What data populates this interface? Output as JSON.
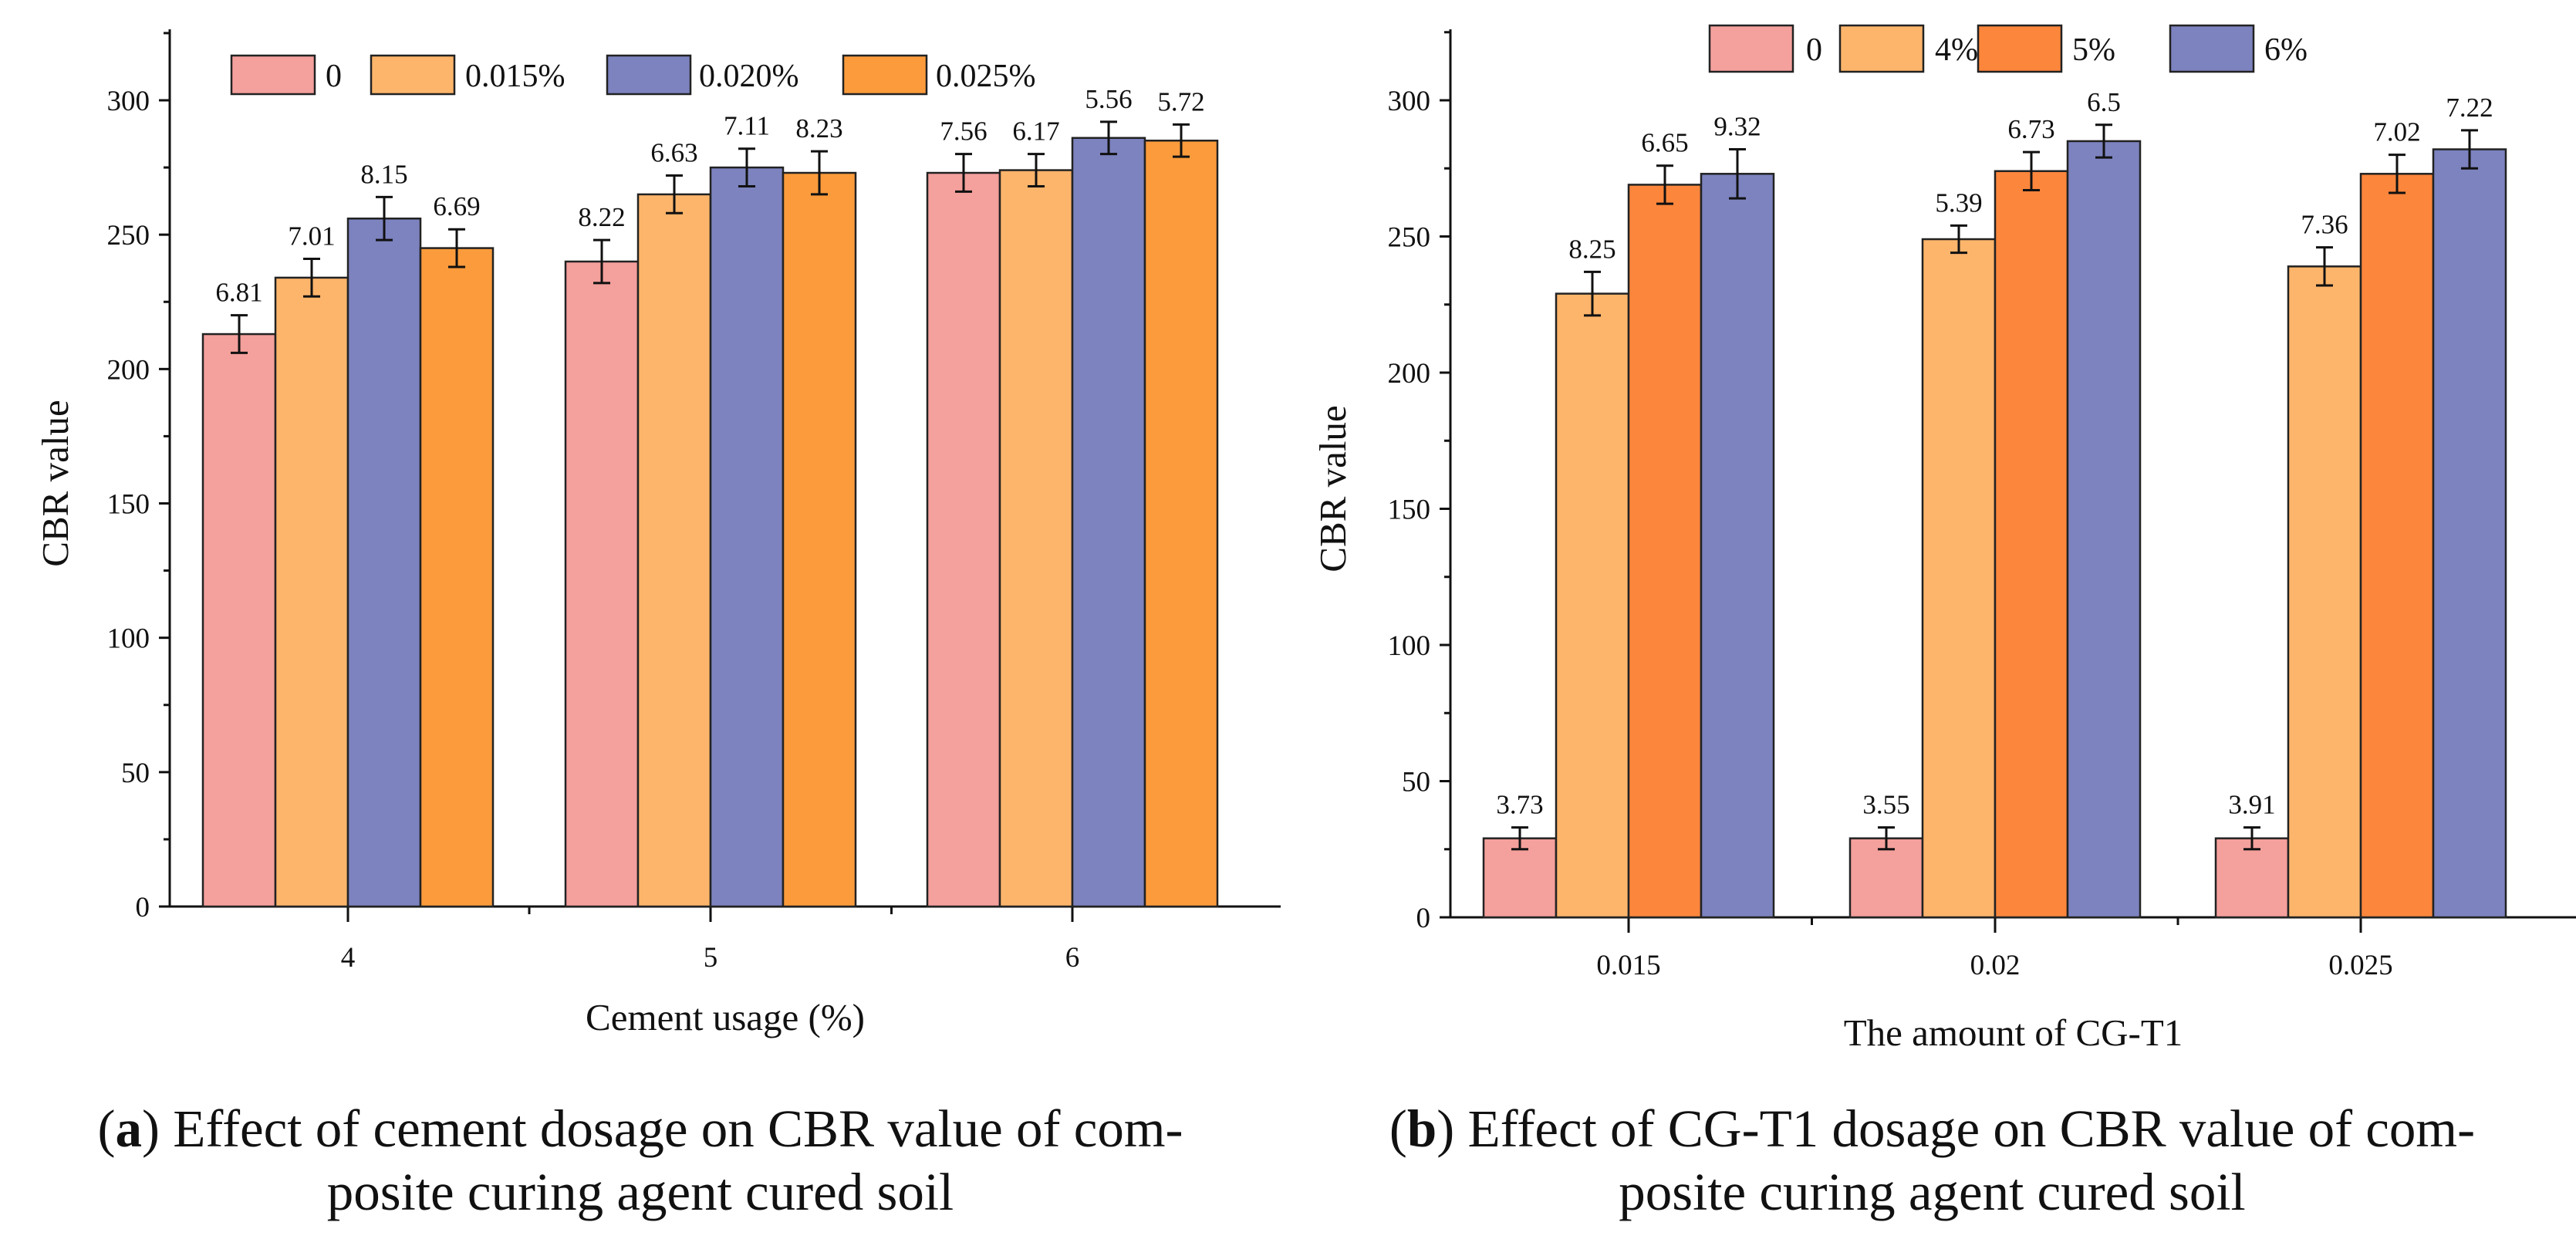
{
  "chart_data": [
    {
      "id": "a",
      "type": "bar",
      "title": "Effect of cement dosage on CBR value of composite curing agent cured soil",
      "caption_letter": "a",
      "caption_line1": "Effect of cement dosage on CBR value of com-",
      "caption_line2": "posite curing agent cured soil",
      "xlabel": "Cement usage (%)",
      "ylabel": "CBR value",
      "ylim": [
        0,
        325
      ],
      "yticks": [
        0,
        50,
        100,
        150,
        200,
        250,
        300
      ],
      "categories": [
        "4",
        "5",
        "6"
      ],
      "series": [
        {
          "name": "0",
          "color": "#F4A09C",
          "values": [
            213,
            240,
            273
          ],
          "errors": [
            7,
            8,
            7
          ],
          "labels": [
            "6.81",
            "8.22",
            "7.56"
          ]
        },
        {
          "name": "0.015%",
          "color": "#FDB56B",
          "values": [
            234,
            265,
            274
          ],
          "errors": [
            7,
            7,
            6
          ],
          "labels": [
            "7.01",
            "6.63",
            "6.17"
          ]
        },
        {
          "name": "0.020%",
          "color": "#7C83BF",
          "values": [
            256,
            275,
            286
          ],
          "errors": [
            8,
            7,
            6
          ],
          "labels": [
            "8.15",
            "7.11",
            "5.56"
          ]
        },
        {
          "name": "0.025%",
          "color": "#FB9B3C",
          "values": [
            245,
            273,
            285
          ],
          "errors": [
            7,
            8,
            6
          ],
          "labels": [
            "6.69",
            "8.23",
            "5.72"
          ]
        }
      ]
    },
    {
      "id": "b",
      "type": "bar",
      "title": "Effect of CG-T1 dosage on CBR value of composite curing agent cured soil",
      "caption_letter": "b",
      "caption_line1": "Effect of CG-T1 dosage on CBR value of com-",
      "caption_line2": "posite curing agent cured soil",
      "xlabel": "The amount of CG-T1",
      "ylabel": "CBR value",
      "ylim": [
        0,
        325
      ],
      "yticks": [
        0,
        50,
        100,
        150,
        200,
        250,
        300
      ],
      "categories": [
        "0.015",
        "0.02",
        "0.025"
      ],
      "series": [
        {
          "name": "0",
          "color": "#F4A09C",
          "values": [
            29,
            29,
            29
          ],
          "errors": [
            4,
            4,
            4
          ],
          "labels": [
            "3.73",
            "3.55",
            "3.91"
          ]
        },
        {
          "name": "4%",
          "color": "#FDB56B",
          "values": [
            229,
            249,
            239
          ],
          "errors": [
            8,
            5,
            7
          ],
          "labels": [
            "8.25",
            "5.39",
            "7.36"
          ]
        },
        {
          "name": "5%",
          "color": "#FB863C",
          "values": [
            269,
            274,
            273
          ],
          "errors": [
            7,
            7,
            7
          ],
          "labels": [
            "6.65",
            "6.73",
            "7.02"
          ]
        },
        {
          "name": "6%",
          "color": "#7C83BF",
          "values": [
            273,
            285,
            282
          ],
          "errors": [
            9,
            6,
            7
          ],
          "labels": [
            "9.32",
            "6.5",
            "7.22"
          ]
        }
      ]
    }
  ]
}
